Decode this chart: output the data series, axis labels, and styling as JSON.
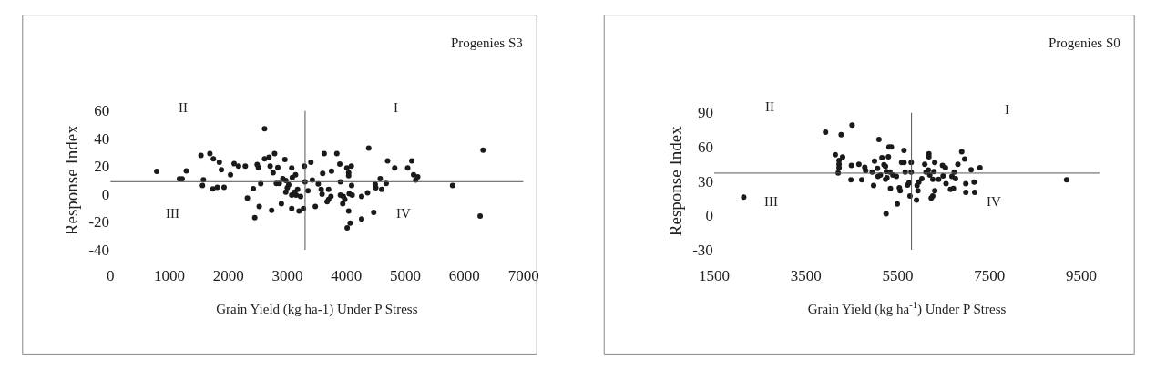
{
  "chart_data": [
    {
      "type": "scatter",
      "title": "Progenies S3",
      "xlabel": "Grain Yield (kg ha-1) Under P Stress",
      "ylabel": "Response Index",
      "color": "#1a1a1a",
      "marker": "circle",
      "grid": false,
      "legend": false,
      "xlim": [
        0,
        7000
      ],
      "xticks": [
        0,
        1000,
        2000,
        3000,
        4000,
        5000,
        6000,
        7000
      ],
      "ylim": [
        -40,
        60
      ],
      "yticks": [
        -40,
        -20,
        0,
        20,
        40,
        60
      ],
      "ref_lines": [
        {
          "axis": "x",
          "value": 3300,
          "color": "#555555"
        },
        {
          "axis": "y",
          "value": 9,
          "color": "#555555"
        }
      ],
      "annotations": [
        "II",
        "I",
        "III",
        "IV"
      ],
      "x": [
        786,
        1171,
        1216,
        1287,
        1536,
        1577,
        1561,
        1686,
        1737,
        1746,
        1812,
        1847,
        1882,
        1927,
        2037,
        2097,
        2172,
        2287,
        2322,
        2422,
        2447,
        2488,
        2508,
        2523,
        2548,
        2613,
        2613,
        2688,
        2708,
        2733,
        2783,
        2758,
        2813,
        2863,
        2838,
        2958,
        2898,
        2923,
        2973,
        2998,
        3073,
        3083,
        3138,
        3073,
        3123,
        3173,
        3198,
        3223,
        3288,
        3298,
        3273,
        3023,
        2973,
        3073,
        3148,
        3398,
        3348,
        3423,
        3473,
        3523,
        3573,
        3588,
        3598,
        3623,
        3673,
        3698,
        3698,
        3738,
        3748,
        3838,
        3888,
        3898,
        3898,
        3948,
        3938,
        3973,
        4008,
        4038,
        4038,
        4083,
        4088,
        4048,
        4098,
        4038,
        4063,
        4013,
        4258,
        4258,
        4358,
        4378,
        4463,
        4488,
        4498,
        4573,
        4598,
        4673,
        4698,
        4818,
        5038,
        5108,
        5138,
        5173,
        5208,
        5799,
        6266,
        6316
      ],
      "values": [
        16.4,
        11,
        11,
        16.7,
        27.9,
        10.4,
        6.2,
        29.2,
        3.7,
        25.4,
        5,
        22.9,
        17.5,
        5,
        13.9,
        21.9,
        20.2,
        20.2,
        -2.7,
        3.9,
        -16.9,
        21.3,
        19.2,
        -8.9,
        7.5,
        47,
        25.4,
        26.5,
        20.2,
        -11.7,
        29.2,
        15.4,
        7.7,
        7.7,
        19.2,
        25,
        -6.9,
        11.2,
        9.8,
        4.6,
        18.8,
        11.9,
        13.9,
        -10.4,
        1.4,
        3.5,
        -12.1,
        -1.7,
        20.2,
        8.8,
        -10.4,
        6.7,
        1.4,
        -0.6,
        -0.6,
        22.9,
        2.5,
        10.2,
        -8.9,
        7.3,
        3.5,
        0,
        15,
        29.2,
        -5.4,
        -3.8,
        3.5,
        -1.7,
        16.5,
        29.2,
        21.7,
        8.8,
        -0.6,
        -1.7,
        -6.9,
        -3.8,
        18.8,
        15.4,
        13.3,
        20.2,
        6.2,
        0.4,
        -0.6,
        -12.1,
        -20.8,
        -24.2,
        -1.7,
        -17.9,
        1,
        33.1,
        -13.1,
        7.1,
        4.6,
        11.2,
        3.5,
        7.7,
        24,
        18.8,
        18.8,
        24,
        13.9,
        10.2,
        12.5,
        6.2,
        -15.8,
        31.7
      ]
    },
    {
      "type": "scatter",
      "title": "Progenies S0",
      "xlabel": "Grain Yield (kg ha$^{-1}$) Under P Stress",
      "ylabel": "Response Index",
      "color": "#1a1a1a",
      "marker": "circle",
      "grid": false,
      "legend": false,
      "xlim": [
        1500,
        9900
      ],
      "xticks": [
        1500,
        3500,
        5500,
        7500,
        9500
      ],
      "ylim": [
        -30,
        90
      ],
      "yticks": [
        -30,
        0,
        30,
        60,
        90
      ],
      "ref_lines": [
        {
          "axis": "x",
          "value": 5800,
          "color": "#555555"
        },
        {
          "axis": "y",
          "value": 37,
          "color": "#555555"
        }
      ],
      "annotations": [
        "II",
        "I",
        "III",
        "IV"
      ],
      "x": [
        2145,
        3927,
        4268,
        4506,
        4139,
        4299,
        4222,
        4222,
        4222,
        4203,
        4492,
        4654,
        4481,
        4717,
        4782,
        4801,
        4944,
        4975,
        4994,
        5060,
        5071,
        5123,
        5091,
        5156,
        5201,
        5234,
        5234,
        5265,
        5253,
        5330,
        5246,
        5297,
        5310,
        5361,
        5342,
        5394,
        5471,
        5490,
        5535,
        5554,
        5586,
        5637,
        5637,
        5663,
        5715,
        5747,
        5767,
        5793,
        5793,
        5909,
        5921,
        5960,
        5940,
        6025,
        6089,
        6115,
        6166,
        6179,
        6179,
        6198,
        6230,
        6263,
        6307,
        6263,
        6307,
        6288,
        6392,
        6475,
        6540,
        6488,
        6552,
        6649,
        6713,
        6681,
        6732,
        6759,
        6810,
        6894,
        6958,
        6983,
        6983,
        7164,
        7176,
        7099,
        7292,
        9178
      ],
      "values": [
        16,
        72.8,
        70.7,
        79,
        53.1,
        51.1,
        48,
        44.8,
        41.8,
        37.2,
        43.7,
        44.8,
        31.2,
        31.2,
        42.2,
        39.2,
        38,
        26.1,
        47.5,
        41.2,
        34.2,
        35.4,
        66.4,
        50.5,
        44.3,
        43,
        31.6,
        32.9,
        38.4,
        38,
        1.4,
        51.3,
        59.9,
        59.9,
        23.6,
        35.4,
        34.2,
        10,
        24.1,
        21.6,
        46.3,
        46.3,
        56.9,
        38,
        26.6,
        28.6,
        17,
        46.3,
        38,
        13.5,
        26.1,
        29.1,
        21.6,
        32.1,
        44.8,
        38,
        39.7,
        53.9,
        51.3,
        35.4,
        15.3,
        17,
        21.6,
        31.6,
        46.3,
        38.4,
        31.6,
        43.7,
        41.8,
        34.6,
        27.8,
        22.8,
        23.6,
        34.2,
        38,
        32.1,
        44.8,
        55.6,
        49.3,
        27.8,
        20.3,
        29.1,
        20.3,
        39.9,
        41.8,
        31.2
      ]
    }
  ]
}
